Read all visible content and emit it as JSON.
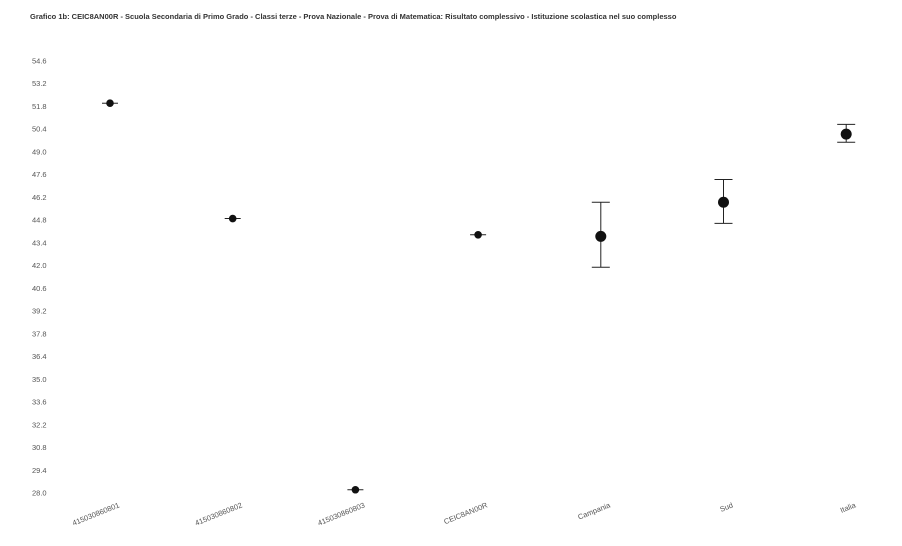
{
  "chart_data": {
    "type": "scatter",
    "title": "Grafico 1b: CEIC8AN00R - Scuola Secondaria di Primo Grado - Classi terze - Prova Nazionale - Prova di Matematica: Risultato complessivo - Istituzione scolastica nel suo complesso",
    "xlabel": "",
    "ylabel": "",
    "ylim": [
      28.0,
      54.6
    ],
    "y_ticks": [
      "54.6",
      "53.2",
      "51.8",
      "50.4",
      "49.0",
      "47.6",
      "46.2",
      "44.8",
      "43.4",
      "42.0",
      "40.6",
      "39.2",
      "37.8",
      "36.4",
      "35.0",
      "33.6",
      "32.2",
      "30.8",
      "29.4",
      "28.0"
    ],
    "grid": false,
    "categories": [
      "415030860801",
      "415030860802",
      "415030860803",
      "CEIC8AN00R",
      "Campania",
      "Sud",
      "Italia"
    ],
    "values": [
      52.0,
      44.9,
      28.2,
      43.9,
      43.8,
      45.9,
      50.1
    ],
    "error_low": [
      null,
      null,
      null,
      null,
      41.9,
      44.6,
      49.6
    ],
    "error_high": [
      null,
      null,
      null,
      null,
      45.9,
      47.3,
      50.7
    ],
    "marker_size": [
      "small",
      "small",
      "small",
      "small",
      "large",
      "large",
      "large"
    ]
  }
}
